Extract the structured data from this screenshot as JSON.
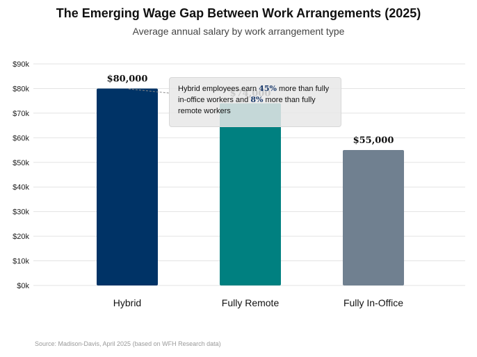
{
  "chart_data": {
    "type": "bar",
    "title": "The Emerging Wage Gap Between Work Arrangements (2025)",
    "subtitle": "Average annual salary by work arrangement type",
    "categories": [
      "Hybrid",
      "Fully Remote",
      "Fully In-Office"
    ],
    "values": [
      80000,
      74000,
      55000
    ],
    "value_labels": [
      "$80,000",
      "$74,000",
      "$55,000"
    ],
    "colors": [
      "#003366",
      "#008080",
      "#708090"
    ],
    "ylim": [
      0,
      90000
    ],
    "yticks": [
      0,
      10000,
      20000,
      30000,
      40000,
      50000,
      60000,
      70000,
      80000,
      90000
    ],
    "ytick_labels": [
      "$0k",
      "$10k",
      "$20k",
      "$30k",
      "$40k",
      "$50k",
      "$60k",
      "$70k",
      "$80k",
      "$90k"
    ],
    "grid": true,
    "annotation": {
      "part1": "Hybrid employees earn ",
      "hl1": "45%",
      "part2": " more than fully in-office workers and ",
      "hl2": "8%",
      "part3": " more than fully remote workers"
    },
    "source": "Source: Madison-Davis, April 2025 (based on WFH Research data)"
  }
}
